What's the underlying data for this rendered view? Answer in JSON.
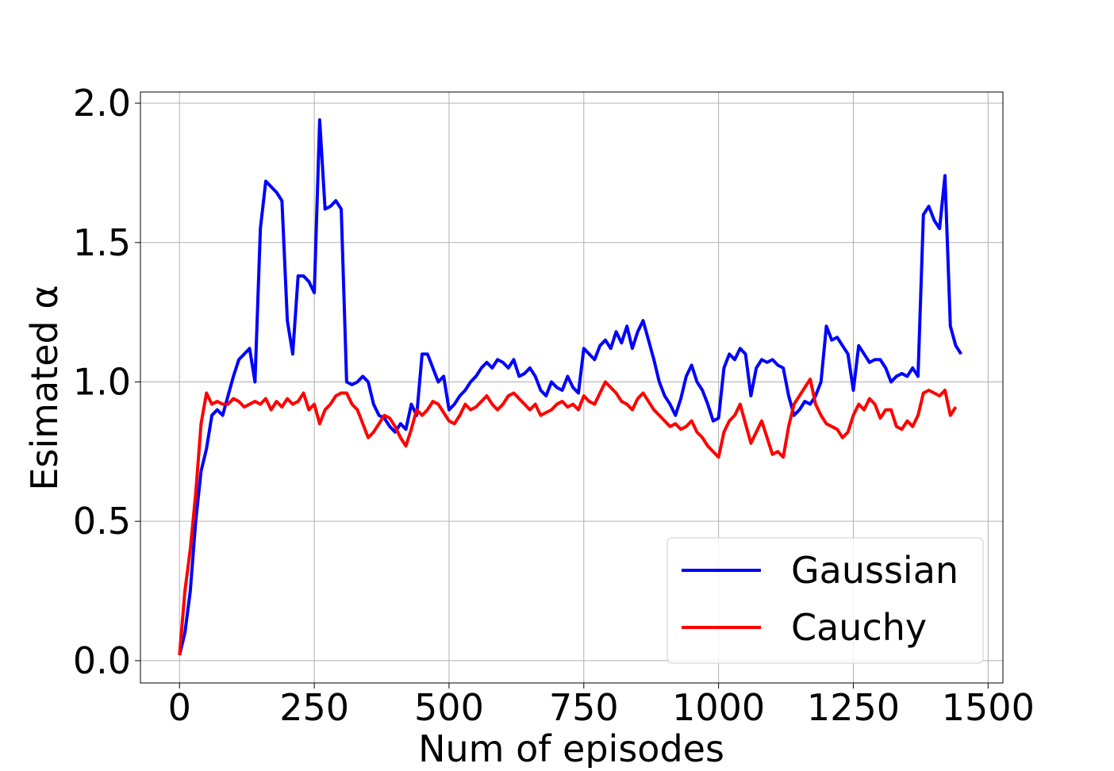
{
  "chart_data": {
    "type": "line",
    "xlabel": "Num of episodes",
    "ylabel": "Esimated α",
    "x": [
      0,
      10,
      20,
      30,
      40,
      50,
      60,
      70,
      80,
      90,
      100,
      110,
      120,
      130,
      140,
      150,
      160,
      170,
      180,
      190,
      200,
      210,
      220,
      230,
      240,
      250,
      260,
      270,
      280,
      290,
      300,
      310,
      320,
      330,
      340,
      350,
      360,
      370,
      380,
      390,
      400,
      410,
      420,
      430,
      440,
      450,
      460,
      470,
      480,
      490,
      500,
      510,
      520,
      530,
      540,
      550,
      560,
      570,
      580,
      590,
      600,
      610,
      620,
      630,
      640,
      650,
      660,
      670,
      680,
      690,
      700,
      710,
      720,
      730,
      740,
      750,
      760,
      770,
      780,
      790,
      800,
      810,
      820,
      830,
      840,
      850,
      860,
      870,
      880,
      890,
      900,
      910,
      920,
      930,
      940,
      950,
      960,
      970,
      980,
      990,
      1000,
      1010,
      1020,
      1030,
      1040,
      1050,
      1060,
      1070,
      1080,
      1090,
      1100,
      1110,
      1120,
      1130,
      1140,
      1150,
      1160,
      1170,
      1180,
      1190,
      1200,
      1210,
      1220,
      1230,
      1240,
      1250,
      1260,
      1270,
      1280,
      1290,
      1300,
      1310,
      1320,
      1330,
      1340,
      1350,
      1360,
      1370,
      1380,
      1390,
      1400,
      1410,
      1420,
      1430,
      1440,
      1450
    ],
    "series": [
      {
        "name": "Gaussian",
        "color": "#0000ff",
        "values": [
          0.02,
          0.1,
          0.25,
          0.5,
          0.68,
          0.76,
          0.88,
          0.9,
          0.88,
          0.95,
          1.02,
          1.08,
          1.1,
          1.12,
          1.0,
          1.55,
          1.72,
          1.7,
          1.68,
          1.65,
          1.22,
          1.1,
          1.38,
          1.38,
          1.36,
          1.32,
          1.94,
          1.62,
          1.63,
          1.65,
          1.62,
          1.0,
          0.99,
          1.0,
          1.02,
          1.0,
          0.92,
          0.88,
          0.87,
          0.84,
          0.82,
          0.85,
          0.83,
          0.92,
          0.88,
          1.1,
          1.1,
          1.05,
          1.0,
          1.02,
          0.9,
          0.92,
          0.95,
          0.97,
          1.0,
          1.02,
          1.05,
          1.07,
          1.05,
          1.08,
          1.07,
          1.05,
          1.08,
          1.02,
          1.03,
          1.05,
          1.02,
          0.97,
          0.95,
          1.0,
          0.98,
          0.97,
          1.02,
          0.98,
          0.96,
          1.12,
          1.1,
          1.08,
          1.13,
          1.15,
          1.12,
          1.18,
          1.14,
          1.2,
          1.12,
          1.18,
          1.22,
          1.15,
          1.08,
          1.0,
          0.95,
          0.92,
          0.88,
          0.94,
          1.02,
          1.06,
          1.0,
          0.97,
          0.92,
          0.86,
          0.87,
          1.05,
          1.1,
          1.08,
          1.12,
          1.1,
          0.95,
          1.05,
          1.08,
          1.07,
          1.08,
          1.06,
          1.05,
          0.95,
          0.88,
          0.9,
          0.93,
          0.92,
          0.95,
          1.0,
          1.2,
          1.15,
          1.16,
          1.13,
          1.1,
          0.97,
          1.13,
          1.1,
          1.07,
          1.08,
          1.08,
          1.05,
          1.0,
          1.02,
          1.03,
          1.02,
          1.05,
          1.02,
          1.6,
          1.63,
          1.58,
          1.55,
          1.74,
          1.2,
          1.13,
          1.1
        ]
      },
      {
        "name": "Cauchy",
        "color": "#ff0000",
        "values": [
          0.02,
          0.25,
          0.4,
          0.6,
          0.85,
          0.96,
          0.92,
          0.93,
          0.92,
          0.92,
          0.94,
          0.93,
          0.91,
          0.92,
          0.93,
          0.92,
          0.94,
          0.9,
          0.93,
          0.91,
          0.94,
          0.92,
          0.93,
          0.96,
          0.9,
          0.92,
          0.85,
          0.9,
          0.92,
          0.95,
          0.96,
          0.96,
          0.92,
          0.9,
          0.85,
          0.8,
          0.82,
          0.85,
          0.88,
          0.87,
          0.84,
          0.8,
          0.77,
          0.83,
          0.9,
          0.88,
          0.9,
          0.93,
          0.92,
          0.89,
          0.86,
          0.85,
          0.88,
          0.92,
          0.9,
          0.91,
          0.93,
          0.95,
          0.92,
          0.9,
          0.92,
          0.95,
          0.96,
          0.94,
          0.92,
          0.9,
          0.92,
          0.88,
          0.89,
          0.9,
          0.92,
          0.93,
          0.91,
          0.92,
          0.9,
          0.95,
          0.93,
          0.92,
          0.96,
          1.0,
          0.98,
          0.96,
          0.93,
          0.92,
          0.9,
          0.94,
          0.96,
          0.93,
          0.9,
          0.88,
          0.86,
          0.84,
          0.85,
          0.83,
          0.84,
          0.86,
          0.82,
          0.8,
          0.77,
          0.75,
          0.73,
          0.82,
          0.86,
          0.88,
          0.92,
          0.85,
          0.78,
          0.82,
          0.86,
          0.8,
          0.74,
          0.75,
          0.73,
          0.84,
          0.92,
          0.95,
          0.98,
          1.01,
          0.92,
          0.88,
          0.85,
          0.84,
          0.83,
          0.8,
          0.82,
          0.88,
          0.92,
          0.9,
          0.94,
          0.92,
          0.87,
          0.9,
          0.9,
          0.84,
          0.83,
          0.86,
          0.84,
          0.88,
          0.96,
          0.97,
          0.96,
          0.95,
          0.97,
          0.88,
          0.91,
          null
        ]
      }
    ],
    "xlim": [
      -72.5,
      1527.5
    ],
    "ylim": [
      -0.08,
      2.04
    ],
    "xticks": [
      0,
      250,
      500,
      750,
      1000,
      1250,
      1500
    ],
    "yticks": [
      {
        "value": 0,
        "label": "0.0"
      },
      0.5,
      {
        "value": 1,
        "label": "1.0"
      },
      1.5,
      {
        "value": 2,
        "label": "2.0"
      }
    ],
    "grid": true,
    "legend": "lower right"
  }
}
